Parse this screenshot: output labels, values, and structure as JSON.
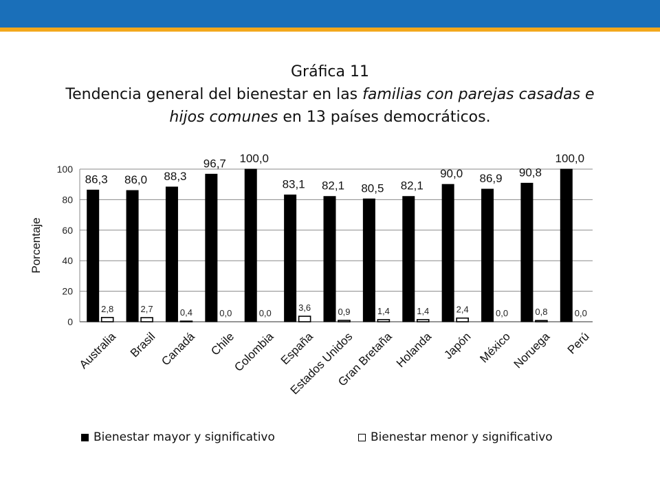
{
  "header": {
    "band_color": "#1a6fb9",
    "accent_color": "#f3a81c"
  },
  "chart_data": {
    "type": "bar",
    "title_line1": "Gráfica 11",
    "title_parts": [
      {
        "text": "Tendencia general del bienestar en las ",
        "italic": false
      },
      {
        "text": "familias con parejas casadas e hijos comunes",
        "italic": true
      },
      {
        "text": " en 13 países democráticos.",
        "italic": false
      }
    ],
    "ylabel": "Porcentaje",
    "xlabel": "",
    "ylim": [
      0,
      100
    ],
    "yticks": [
      "0",
      "20",
      "40",
      "60",
      "80",
      "100"
    ],
    "grid": true,
    "legend_position": "bottom",
    "categories": [
      "Australia",
      "Brasil",
      "Canadá",
      "Chile",
      "Colombia",
      "España",
      "Estados Unidos",
      "Gran Bretaña",
      "Holanda",
      "Japón",
      "México",
      "Noruega",
      "Perú"
    ],
    "series": [
      {
        "name": "Bienestar mayor y significativo",
        "color": "#000000",
        "values": [
          86.3,
          86.0,
          88.3,
          96.7,
          100.0,
          83.1,
          82.1,
          80.5,
          82.1,
          90.0,
          86.9,
          90.8,
          100.0
        ],
        "labels": [
          "86,3",
          "86,0",
          "88,3",
          "96,7",
          "100,0",
          "83,1",
          "82,1",
          "80,5",
          "82,1",
          "90,0",
          "86,9",
          "90,8",
          "100,0"
        ]
      },
      {
        "name": "Bienestar menor y significativo",
        "color": "#ffffff",
        "values": [
          2.8,
          2.7,
          0.4,
          0.0,
          0.0,
          3.6,
          0.9,
          1.4,
          1.4,
          2.4,
          0.0,
          0.8,
          0.0
        ],
        "labels": [
          "2,8",
          "2,7",
          "0,4",
          "0,0",
          "0,0",
          "3,6",
          "0,9",
          "1,4",
          "1,4",
          "2,4",
          "0,0",
          "0,8",
          "0,0"
        ]
      }
    ]
  }
}
